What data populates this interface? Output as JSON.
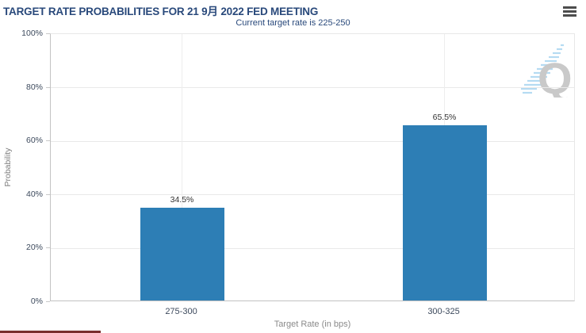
{
  "header": {
    "title": "TARGET RATE PROBABILITIES FOR 21 9月 2022 FED MEETING",
    "subtitle": "Current target rate is 225-250"
  },
  "menu": {
    "icon": "hamburger-icon"
  },
  "watermark": {
    "icon": "quikstrike-q-logo"
  },
  "colors": {
    "title_text": "#29497b",
    "bar": "#2d7eb5",
    "data_label": "#333333",
    "tick_label": "#3d4a5d",
    "axis_title": "#8a8a8a",
    "gridline": "#e9e9e9",
    "axis_line": "#c2c2c2",
    "watermark_gray": "#c9c9c9",
    "watermark_blue": "#b5dbf2",
    "menu_icon": "#4d4d4d"
  },
  "chart_data": {
    "type": "bar",
    "title": "TARGET RATE PROBABILITIES FOR 21 9月 2022 FED MEETING",
    "subtitle": "Current target rate is 225-250",
    "categories": [
      "275-300",
      "300-325"
    ],
    "values": [
      34.5,
      65.5
    ],
    "data_labels": [
      "34.5%",
      "65.5%"
    ],
    "xlabel": "Target Rate (in bps)",
    "ylabel": "Probability",
    "ylim": [
      0,
      100
    ],
    "yticks": [
      0,
      20,
      40,
      60,
      80,
      100
    ],
    "ytick_labels": [
      "0%",
      "20%",
      "40%",
      "60%",
      "80%",
      "100%"
    ],
    "grid": "horizontal at 20% steps, vertical at category centers",
    "legend": "none",
    "bar_color": "#2d7eb5"
  }
}
